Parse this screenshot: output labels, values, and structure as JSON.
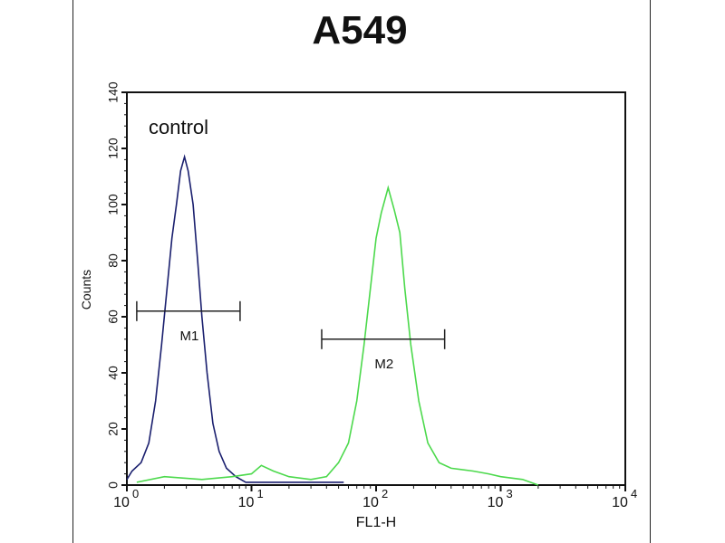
{
  "chart_data": {
    "type": "line",
    "title": "A549",
    "xlabel": "FL1-H",
    "ylabel": "Counts",
    "xscale": "log",
    "xlim": [
      1,
      10000
    ],
    "ylim": [
      0,
      140
    ],
    "x_ticks": [
      {
        "base": "10",
        "exp": "0"
      },
      {
        "base": "10",
        "exp": "1"
      },
      {
        "base": "10",
        "exp": "2"
      },
      {
        "base": "10",
        "exp": "3"
      },
      {
        "base": "10",
        "exp": "4"
      }
    ],
    "y_ticks": [
      "0",
      "20",
      "40",
      "60",
      "80",
      "100",
      "120",
      "140"
    ],
    "grid": false,
    "annotation": "control",
    "series": [
      {
        "color": "#1a1f6e",
        "points": [
          [
            1.0,
            2
          ],
          [
            1.1,
            5
          ],
          [
            1.3,
            8
          ],
          [
            1.5,
            15
          ],
          [
            1.7,
            30
          ],
          [
            1.9,
            50
          ],
          [
            2.1,
            70
          ],
          [
            2.3,
            88
          ],
          [
            2.5,
            100
          ],
          [
            2.7,
            112
          ],
          [
            2.9,
            117
          ],
          [
            3.1,
            112
          ],
          [
            3.4,
            100
          ],
          [
            3.7,
            80
          ],
          [
            4.0,
            60
          ],
          [
            4.4,
            40
          ],
          [
            4.9,
            22
          ],
          [
            5.5,
            12
          ],
          [
            6.3,
            6
          ],
          [
            7.5,
            3
          ],
          [
            9,
            1
          ],
          [
            12,
            1
          ],
          [
            20,
            1
          ],
          [
            40,
            1
          ],
          [
            55,
            1
          ]
        ]
      },
      {
        "color": "#4cd94c",
        "points": [
          [
            1.2,
            1
          ],
          [
            2,
            3
          ],
          [
            4,
            2
          ],
          [
            7,
            3
          ],
          [
            10,
            4
          ],
          [
            12,
            7
          ],
          [
            15,
            5
          ],
          [
            20,
            3
          ],
          [
            30,
            2
          ],
          [
            40,
            3
          ],
          [
            50,
            8
          ],
          [
            60,
            15
          ],
          [
            70,
            30
          ],
          [
            80,
            50
          ],
          [
            90,
            70
          ],
          [
            100,
            88
          ],
          [
            110,
            97
          ],
          [
            125,
            106
          ],
          [
            140,
            98
          ],
          [
            155,
            90
          ],
          [
            170,
            70
          ],
          [
            190,
            50
          ],
          [
            220,
            30
          ],
          [
            260,
            15
          ],
          [
            320,
            8
          ],
          [
            400,
            6
          ],
          [
            600,
            5
          ],
          [
            800,
            4
          ],
          [
            1000,
            3
          ],
          [
            1500,
            2
          ],
          [
            2000,
            0
          ]
        ]
      }
    ],
    "markers": [
      {
        "label": "M1",
        "x_range": [
          1.2,
          8.1
        ],
        "y": 62
      },
      {
        "label": "M2",
        "x_range": [
          36.6,
          355
        ],
        "y": 52
      }
    ]
  }
}
